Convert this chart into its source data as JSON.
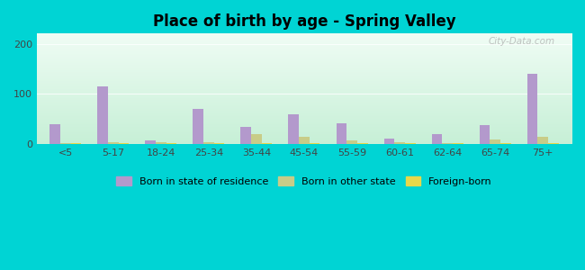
{
  "title": "Place of birth by age - Spring Valley",
  "categories": [
    "<5",
    "5-17",
    "18-24",
    "25-34",
    "35-44",
    "45-54",
    "55-59",
    "60-61",
    "62-64",
    "65-74",
    "75+"
  ],
  "born_in_state": [
    40,
    115,
    7,
    70,
    35,
    60,
    42,
    12,
    20,
    38,
    140
  ],
  "born_other_state": [
    3,
    5,
    4,
    5,
    20,
    15,
    8,
    4,
    3,
    10,
    15
  ],
  "foreign_born": [
    2,
    2,
    3,
    3,
    3,
    3,
    3,
    2,
    2,
    3,
    3
  ],
  "bar_color_state": "#b399cc",
  "bar_color_other": "#c8cc88",
  "bar_color_foreign": "#e8d84a",
  "background_outer": "#00d4d4",
  "bg_top": "#e8f5ee",
  "bg_bottom": "#c8ead8",
  "ylim": [
    0,
    220
  ],
  "yticks": [
    0,
    100,
    200
  ],
  "bar_width": 0.22,
  "legend_labels": [
    "Born in state of residence",
    "Born in other state",
    "Foreign-born"
  ],
  "watermark": "City-Data.com"
}
